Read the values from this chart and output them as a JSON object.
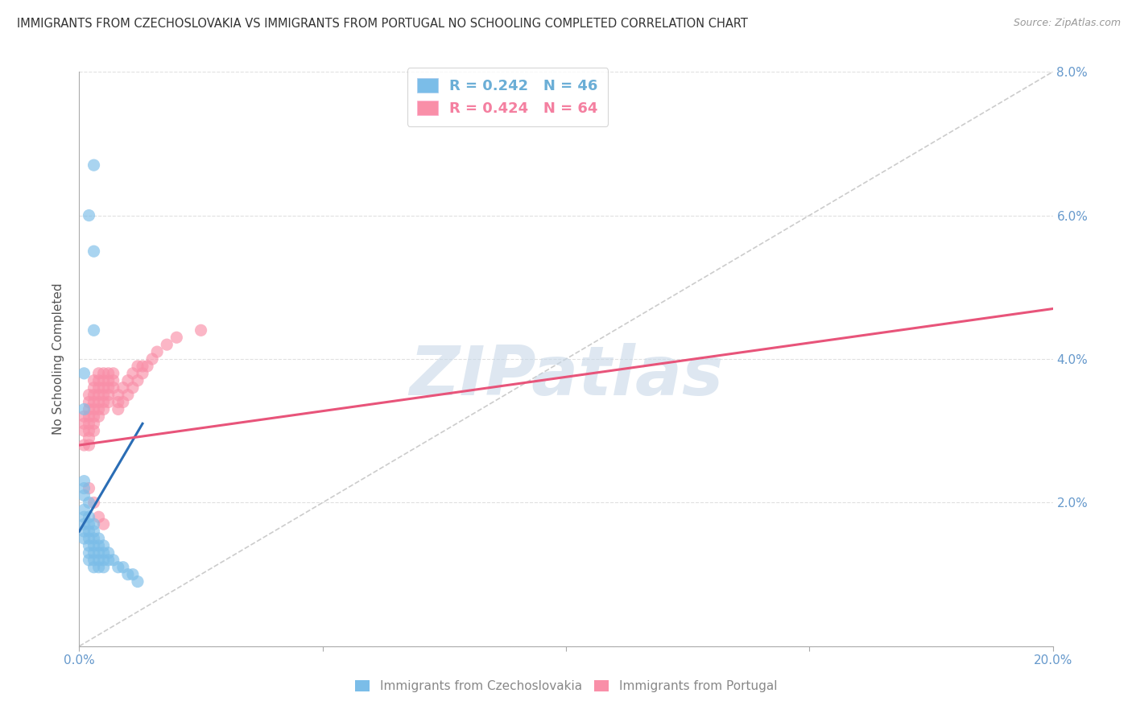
{
  "title": "IMMIGRANTS FROM CZECHOSLOVAKIA VS IMMIGRANTS FROM PORTUGAL NO SCHOOLING COMPLETED CORRELATION CHART",
  "source": "Source: ZipAtlas.com",
  "ylabel": "No Schooling Completed",
  "xlim": [
    0.0,
    0.2
  ],
  "ylim": [
    0.0,
    0.08
  ],
  "xticks": [
    0.0,
    0.05,
    0.1,
    0.15,
    0.2
  ],
  "yticks": [
    0.0,
    0.02,
    0.04,
    0.06,
    0.08
  ],
  "legend_entries": [
    {
      "label": "R = 0.242   N = 46",
      "color": "#6baed6"
    },
    {
      "label": "R = 0.424   N = 64",
      "color": "#f47fa0"
    }
  ],
  "blue_scatter": [
    [
      0.001,
      0.016
    ],
    [
      0.001,
      0.017
    ],
    [
      0.001,
      0.018
    ],
    [
      0.001,
      0.019
    ],
    [
      0.001,
      0.021
    ],
    [
      0.001,
      0.022
    ],
    [
      0.001,
      0.023
    ],
    [
      0.001,
      0.015
    ],
    [
      0.002,
      0.02
    ],
    [
      0.002,
      0.018
    ],
    [
      0.002,
      0.017
    ],
    [
      0.002,
      0.016
    ],
    [
      0.002,
      0.015
    ],
    [
      0.002,
      0.014
    ],
    [
      0.002,
      0.013
    ],
    [
      0.002,
      0.012
    ],
    [
      0.003,
      0.017
    ],
    [
      0.003,
      0.016
    ],
    [
      0.003,
      0.015
    ],
    [
      0.003,
      0.014
    ],
    [
      0.003,
      0.013
    ],
    [
      0.003,
      0.012
    ],
    [
      0.003,
      0.011
    ],
    [
      0.004,
      0.015
    ],
    [
      0.004,
      0.014
    ],
    [
      0.004,
      0.013
    ],
    [
      0.004,
      0.012
    ],
    [
      0.004,
      0.011
    ],
    [
      0.005,
      0.014
    ],
    [
      0.005,
      0.013
    ],
    [
      0.005,
      0.012
    ],
    [
      0.005,
      0.011
    ],
    [
      0.006,
      0.013
    ],
    [
      0.006,
      0.012
    ],
    [
      0.007,
      0.012
    ],
    [
      0.008,
      0.011
    ],
    [
      0.009,
      0.011
    ],
    [
      0.01,
      0.01
    ],
    [
      0.011,
      0.01
    ],
    [
      0.012,
      0.009
    ],
    [
      0.001,
      0.033
    ],
    [
      0.001,
      0.038
    ],
    [
      0.002,
      0.06
    ],
    [
      0.003,
      0.067
    ],
    [
      0.003,
      0.055
    ],
    [
      0.003,
      0.044
    ]
  ],
  "pink_scatter": [
    [
      0.001,
      0.028
    ],
    [
      0.001,
      0.03
    ],
    [
      0.001,
      0.031
    ],
    [
      0.001,
      0.032
    ],
    [
      0.002,
      0.028
    ],
    [
      0.002,
      0.029
    ],
    [
      0.002,
      0.03
    ],
    [
      0.002,
      0.031
    ],
    [
      0.002,
      0.032
    ],
    [
      0.002,
      0.033
    ],
    [
      0.002,
      0.034
    ],
    [
      0.002,
      0.035
    ],
    [
      0.003,
      0.03
    ],
    [
      0.003,
      0.031
    ],
    [
      0.003,
      0.032
    ],
    [
      0.003,
      0.033
    ],
    [
      0.003,
      0.034
    ],
    [
      0.003,
      0.035
    ],
    [
      0.003,
      0.036
    ],
    [
      0.003,
      0.037
    ],
    [
      0.004,
      0.032
    ],
    [
      0.004,
      0.033
    ],
    [
      0.004,
      0.034
    ],
    [
      0.004,
      0.035
    ],
    [
      0.004,
      0.036
    ],
    [
      0.004,
      0.037
    ],
    [
      0.004,
      0.038
    ],
    [
      0.005,
      0.033
    ],
    [
      0.005,
      0.034
    ],
    [
      0.005,
      0.035
    ],
    [
      0.005,
      0.036
    ],
    [
      0.005,
      0.037
    ],
    [
      0.005,
      0.038
    ],
    [
      0.006,
      0.034
    ],
    [
      0.006,
      0.035
    ],
    [
      0.006,
      0.036
    ],
    [
      0.006,
      0.037
    ],
    [
      0.006,
      0.038
    ],
    [
      0.007,
      0.036
    ],
    [
      0.007,
      0.037
    ],
    [
      0.007,
      0.038
    ],
    [
      0.008,
      0.033
    ],
    [
      0.008,
      0.034
    ],
    [
      0.008,
      0.035
    ],
    [
      0.009,
      0.034
    ],
    [
      0.009,
      0.036
    ],
    [
      0.01,
      0.035
    ],
    [
      0.01,
      0.037
    ],
    [
      0.011,
      0.036
    ],
    [
      0.011,
      0.038
    ],
    [
      0.012,
      0.037
    ],
    [
      0.012,
      0.039
    ],
    [
      0.013,
      0.038
    ],
    [
      0.013,
      0.039
    ],
    [
      0.014,
      0.039
    ],
    [
      0.015,
      0.04
    ],
    [
      0.016,
      0.041
    ],
    [
      0.018,
      0.042
    ],
    [
      0.02,
      0.043
    ],
    [
      0.025,
      0.044
    ],
    [
      0.002,
      0.022
    ],
    [
      0.003,
      0.02
    ],
    [
      0.004,
      0.018
    ],
    [
      0.005,
      0.017
    ]
  ],
  "blue_line_x": [
    0.0,
    0.013
  ],
  "blue_line_y": [
    0.016,
    0.031
  ],
  "pink_line_x": [
    0.0,
    0.2
  ],
  "pink_line_y": [
    0.028,
    0.047
  ],
  "diag_line_x": [
    0.0,
    0.2
  ],
  "diag_line_y": [
    0.0,
    0.08
  ],
  "blue_scatter_color": "#7bbde8",
  "pink_scatter_color": "#f98fa8",
  "blue_line_color": "#2a6db5",
  "pink_line_color": "#e8547a",
  "diag_line_color": "#cccccc",
  "watermark": "ZIPatlas",
  "watermark_color": "#c8d8e8",
  "title_color": "#333333",
  "tick_color": "#6699cc",
  "grid_color": "#e0e0e0",
  "background_color": "#ffffff",
  "figsize": [
    14.06,
    8.92
  ],
  "dpi": 100
}
